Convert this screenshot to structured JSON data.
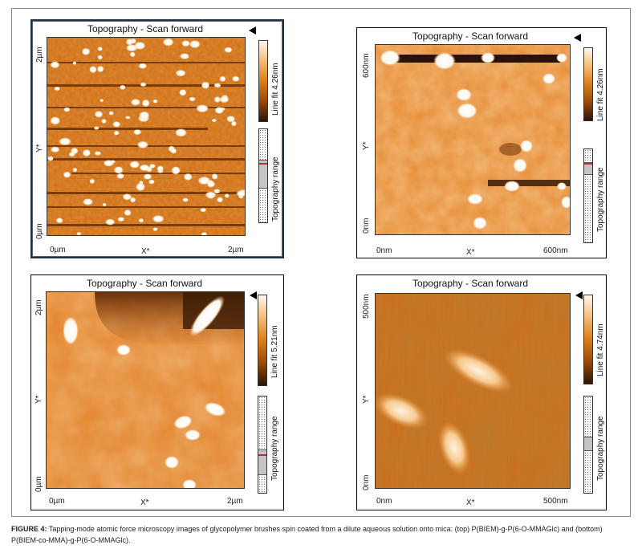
{
  "figure": {
    "caption_label": "FIGURE 4:",
    "caption_text": "Tapping-mode atomic force microscopy images of glycopolymer brushes spin coated from a dilute aqueous solution onto mica: (top) P(BIEM)-g-P(6-O-MMAGlc) and (bottom) P(BIEM-co-MMA)-g-P(6-O-MMAGlc)."
  },
  "panels": [
    {
      "title": "Topography - Scan forward",
      "y_top": "2µm",
      "y_bottom": "0µm",
      "y_axis": "Y*",
      "x_left": "0µm",
      "x_mid": "X*",
      "x_right": "2µm",
      "line_fit": "Line fit 4.26nm",
      "range_label": "Topography range"
    },
    {
      "title": "Topography - Scan forward",
      "y_top": "600nm",
      "y_bottom": "0nm",
      "y_axis": "Y*",
      "x_left": "0nm",
      "x_mid": "X*",
      "x_right": "600nm",
      "line_fit": "Line fit 4.26nm",
      "range_label": "Topography range"
    },
    {
      "title": "Topography - Scan forward",
      "y_top": "2µm",
      "y_bottom": "0µm",
      "y_axis": "Y*",
      "x_left": "0µm",
      "x_mid": "X*",
      "x_right": "2µm",
      "line_fit": "Line fit 5.21nm",
      "range_label": "Topography range"
    },
    {
      "title": "Topography - Scan forward",
      "y_top": "500nm",
      "y_bottom": "0nm",
      "y_axis": "Y*",
      "x_left": "0nm",
      "x_mid": "X*",
      "x_right": "500nm",
      "line_fit": "Line fit 4.74nm",
      "range_label": "Topography range"
    }
  ],
  "colors": {
    "afm_dark": "#6b2f04",
    "afm_mid": "#d97a1c",
    "afm_light": "#f5b66a",
    "afm_peak": "#fffaf2"
  }
}
